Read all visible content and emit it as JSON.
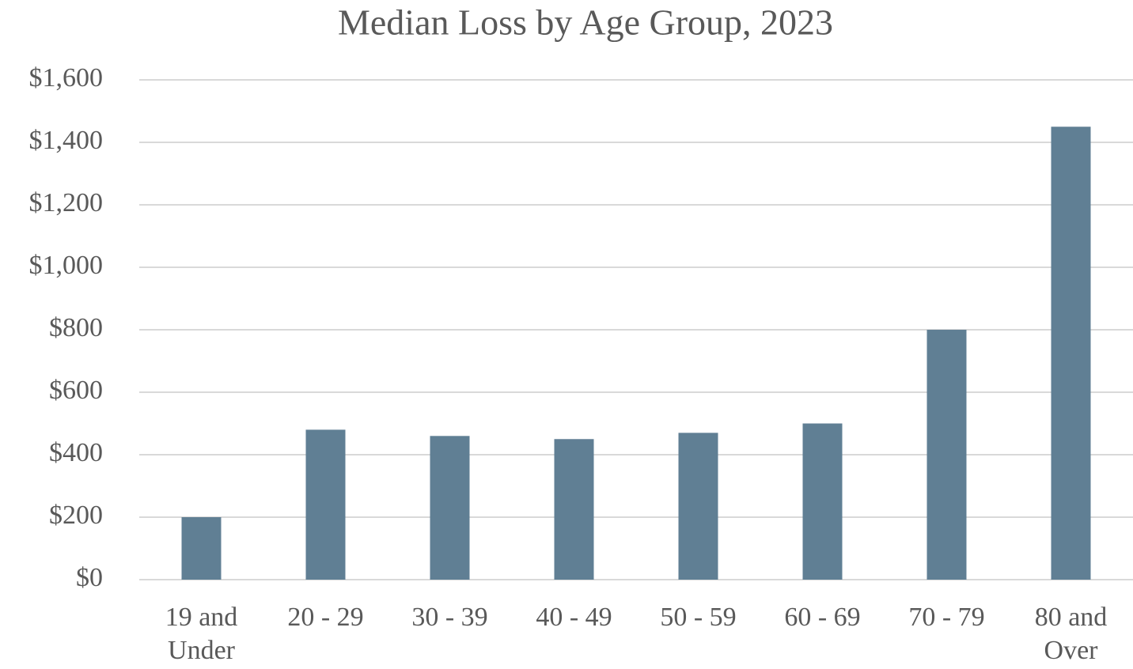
{
  "chart_data": {
    "type": "bar",
    "title": "Median Loss by Age Group, 2023",
    "categories": [
      "19 and Under",
      "20 - 29",
      "30 - 39",
      "40 - 49",
      "50 - 59",
      "60 - 69",
      "70 - 79",
      "80 and Over"
    ],
    "values": [
      200,
      480,
      460,
      450,
      470,
      500,
      800,
      1450
    ],
    "color": "#607f94",
    "ylim": [
      0,
      1600
    ],
    "yticks": [
      {
        "value": 0,
        "label": "$0"
      },
      {
        "value": 200,
        "label": "$200"
      },
      {
        "value": 400,
        "label": "$400"
      },
      {
        "value": 600,
        "label": "$600"
      },
      {
        "value": 800,
        "label": "$800"
      },
      {
        "value": 1000,
        "label": "$1,000"
      },
      {
        "value": 1200,
        "label": "$1,200"
      },
      {
        "value": 1400,
        "label": "$1,400"
      },
      {
        "value": 1600,
        "label": "$1,600"
      }
    ],
    "grid": true
  }
}
